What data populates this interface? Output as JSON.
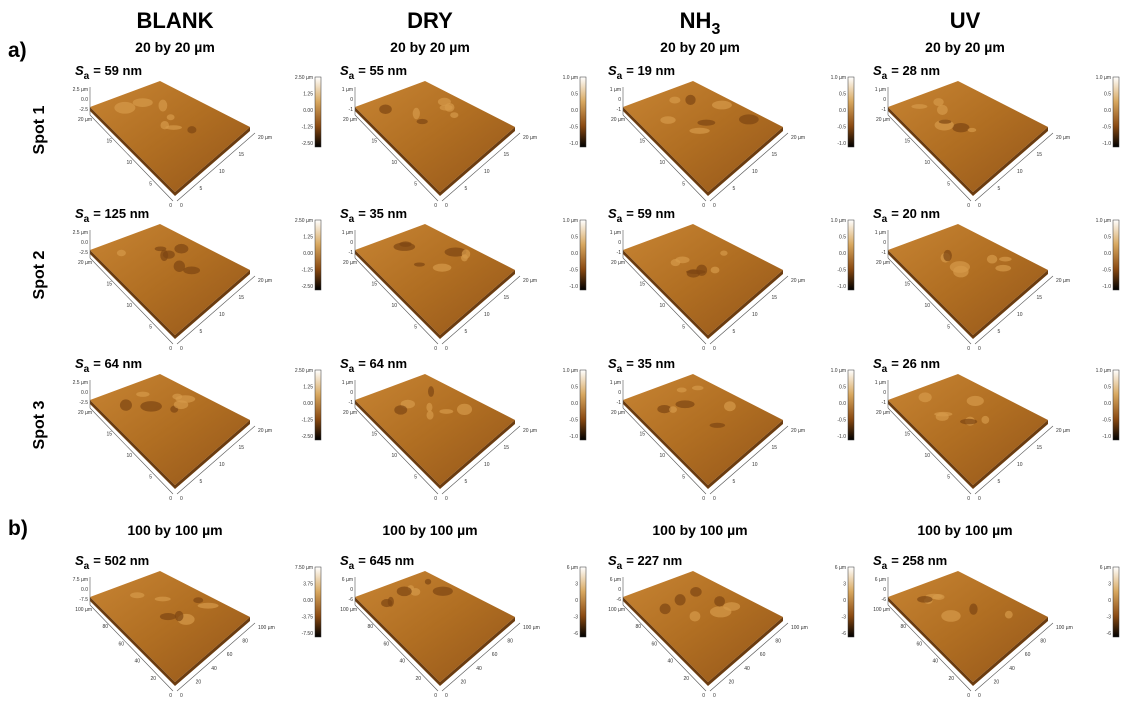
{
  "panel_labels": [
    "a)",
    "b)"
  ],
  "columns": [
    {
      "name": "BLANK"
    },
    {
      "name": "DRY"
    },
    {
      "name": "NH",
      "subscript": "3"
    },
    {
      "name": "UV"
    }
  ],
  "rows": [
    "Spot 1",
    "Spot 2",
    "Spot 3"
  ],
  "scan_sizes": [
    "20 by 20 µm",
    "100 by 100 µm"
  ],
  "sa_symbol": "S",
  "sa_subscript": "a",
  "panels": {
    "a": [
      [
        "= 59 nm",
        "= 55 nm",
        "= 19 nm",
        "= 28 nm"
      ],
      [
        "= 125 nm",
        "= 35 nm",
        "= 59 nm",
        "= 20 nm"
      ],
      [
        "= 64 nm",
        "= 64 nm",
        "= 35 nm",
        "= 26 nm"
      ]
    ],
    "b": [
      "= 502 nm",
      "= 645 nm",
      "= 227 nm",
      "= 258 nm"
    ]
  },
  "colorbar_ticks": {
    "a": [
      [
        "2.50 µm",
        "1.25",
        "0.00",
        "-1.25",
        "-2.50"
      ],
      [
        "1.0 µm",
        "0.5",
        "0.0",
        "-0.5",
        "-1.0"
      ],
      [
        "1.0 µm",
        "0.5",
        "0.0",
        "-0.5",
        "-1.0"
      ],
      [
        "1.0 µm",
        "0.5",
        "0.0",
        "-0.5",
        "-1.0"
      ]
    ],
    "b": [
      [
        "7.50 µm",
        "3.75",
        "0.00",
        "-3.75",
        "-7.50"
      ],
      [
        "6 µm",
        "3",
        "0",
        "-3",
        "-6"
      ],
      [
        "6 µm",
        "3",
        "0",
        "-3",
        "-6"
      ],
      [
        "6 µm",
        "3",
        "0",
        "-3",
        "-6"
      ]
    ]
  },
  "axis_ticks": {
    "a": [
      "0",
      "5",
      "10",
      "15",
      "20 µm"
    ],
    "b": [
      "0",
      "20",
      "40",
      "60",
      "80",
      "100 µm"
    ]
  },
  "z_ticks": {
    "a": [
      [
        "2.5 µm",
        "0.0",
        "-2.5"
      ],
      [
        "1 µm",
        "0",
        "-1"
      ],
      [
        "1 µm",
        "0",
        "-1"
      ],
      [
        "1 µm",
        "0",
        "-1"
      ]
    ],
    "b": [
      [
        "7.5 µm",
        "0.0",
        "-7.5"
      ],
      [
        "6 µm",
        "0",
        "-6"
      ],
      [
        "6 µm",
        "0",
        "-6"
      ],
      [
        "6 µm",
        "0",
        "-6"
      ]
    ]
  }
}
